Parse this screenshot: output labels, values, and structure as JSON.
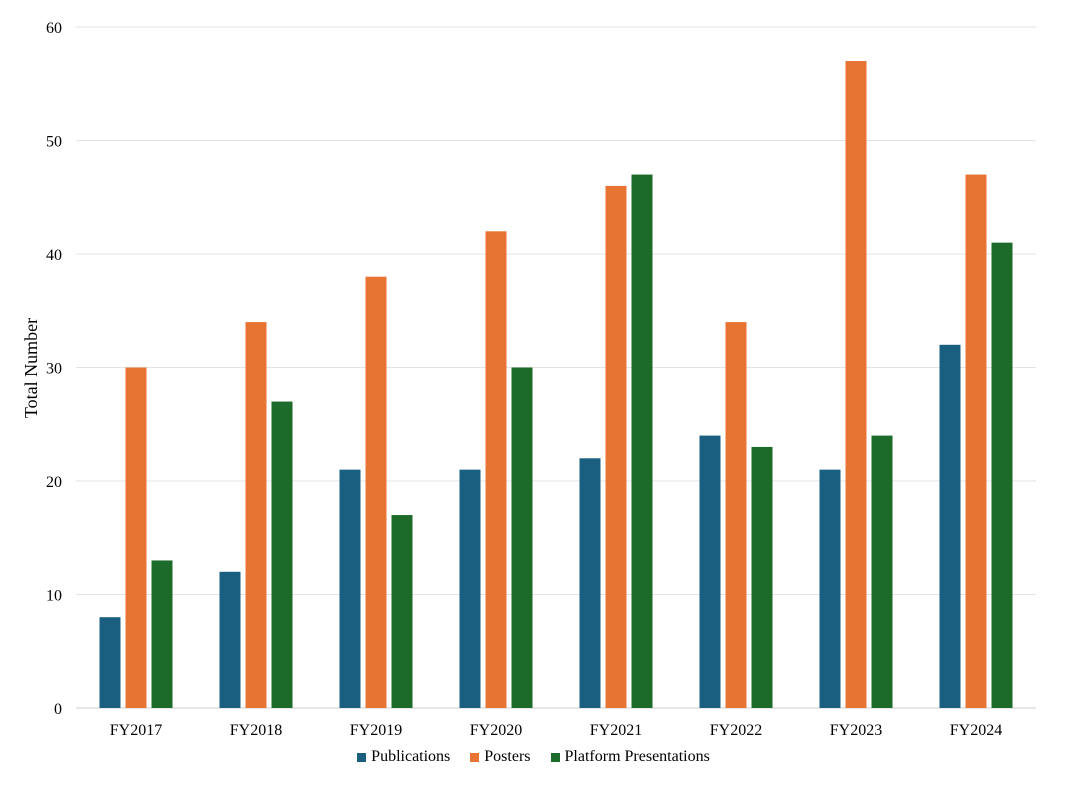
{
  "chart_data": {
    "type": "bar",
    "title": "",
    "xlabel": "",
    "ylabel": "Total Number",
    "ylim": [
      0,
      60
    ],
    "yticks": [
      0,
      10,
      20,
      30,
      40,
      50,
      60
    ],
    "grid": "horizontal",
    "legend_position": "bottom",
    "categories": [
      "FY2017",
      "FY2018",
      "FY2019",
      "FY2020",
      "FY2021",
      "FY2022",
      "FY2023",
      "FY2024"
    ],
    "series": [
      {
        "name": "Publications",
        "color": "#1a5e80",
        "values": [
          8,
          12,
          21,
          21,
          22,
          24,
          21,
          32
        ]
      },
      {
        "name": "Posters",
        "color": "#e87433",
        "values": [
          30,
          34,
          38,
          42,
          46,
          34,
          57,
          47
        ]
      },
      {
        "name": "Platform Presentations",
        "color": "#1d6b2a",
        "values": [
          13,
          27,
          17,
          30,
          47,
          23,
          24,
          41
        ]
      }
    ]
  }
}
